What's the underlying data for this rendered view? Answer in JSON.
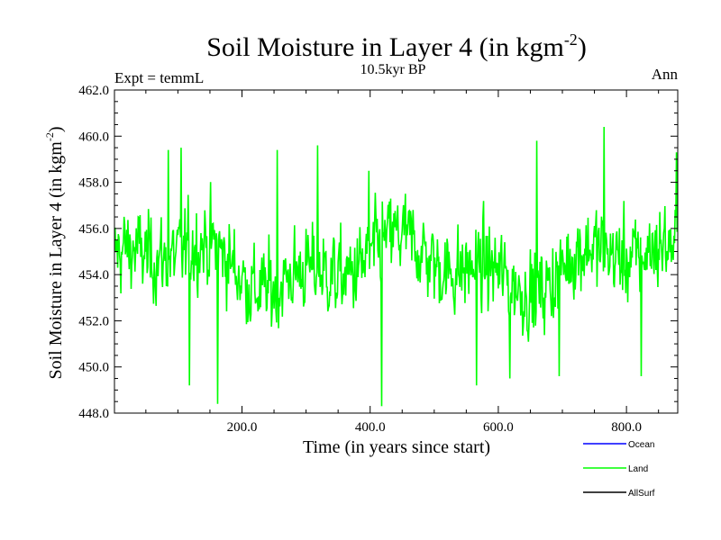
{
  "chart_data": {
    "type": "line",
    "title": "Soil Moisture in Layer 4 (in kgm",
    "title_superscript": "-2",
    "title_close": ")",
    "subtitle": "10.5kyr BP",
    "left_label": "Expt = temmL",
    "right_label": "Ann",
    "xlabel": "Time (in years since start)",
    "ylabel": "Soil Moisture in Layer 4 (in kgm",
    "ylabel_superscript": "-2",
    "ylabel_close": ")",
    "xlim": [
      1,
      880
    ],
    "ylim": [
      448,
      462
    ],
    "x_ticks": [
      200,
      400,
      600,
      800
    ],
    "x_tick_labels": [
      "200.0",
      "400.0",
      "600.0",
      "800.0"
    ],
    "y_ticks": [
      448,
      450,
      452,
      454,
      456,
      458,
      460,
      462
    ],
    "y_tick_labels": [
      "448.0",
      "450.0",
      "452.0",
      "454.0",
      "456.0",
      "458.0",
      "460.0",
      "462.0"
    ],
    "legend": [
      {
        "name": "Ocean",
        "color": "#0000ff"
      },
      {
        "name": "Land",
        "color": "#00ff00"
      },
      {
        "name": "AllSurf",
        "color": "#000000"
      }
    ],
    "series": [
      {
        "name": "Land",
        "color": "#00ff00",
        "mean": 454.4,
        "n_points": 880,
        "x_start": 1,
        "x_step": 1,
        "notable_points": [
          {
            "x": 85,
            "y": 459.4
          },
          {
            "x": 105,
            "y": 459.5
          },
          {
            "x": 118,
            "y": 449.2
          },
          {
            "x": 162,
            "y": 448.4
          },
          {
            "x": 255,
            "y": 459.4
          },
          {
            "x": 318,
            "y": 459.6
          },
          {
            "x": 398,
            "y": 458.5
          },
          {
            "x": 418,
            "y": 448.3
          },
          {
            "x": 566,
            "y": 449.2
          },
          {
            "x": 618,
            "y": 449.5
          },
          {
            "x": 660,
            "y": 459.8
          },
          {
            "x": 695,
            "y": 449.6
          },
          {
            "x": 765,
            "y": 460.4
          },
          {
            "x": 823,
            "y": 449.6
          },
          {
            "x": 878,
            "y": 459.3
          }
        ]
      }
    ]
  }
}
